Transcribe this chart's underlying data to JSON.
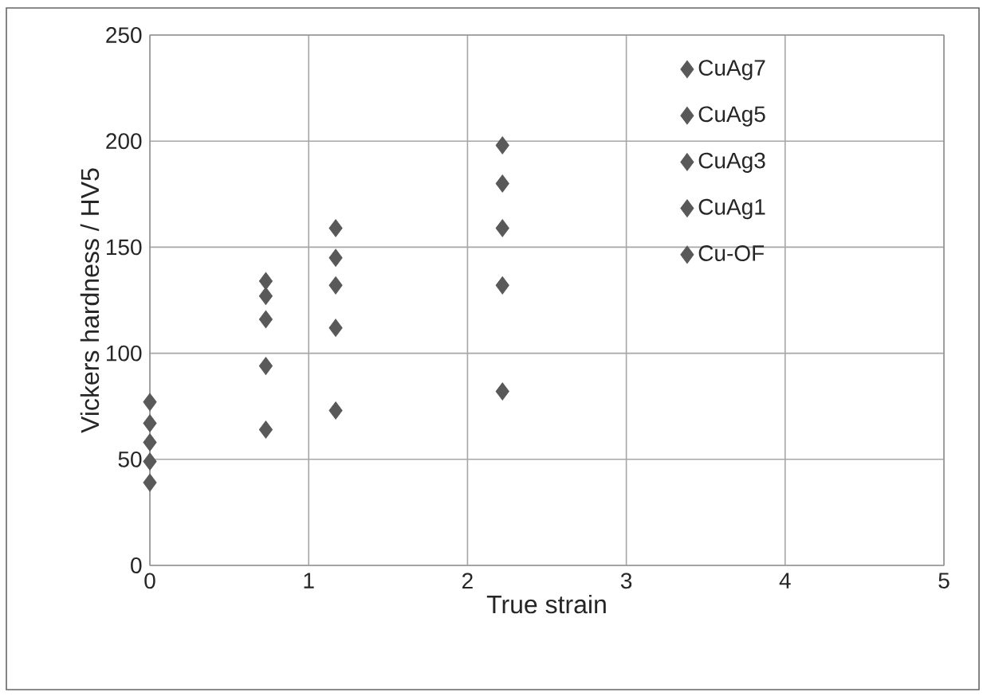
{
  "chart_data": {
    "type": "scatter",
    "xlabel": "True strain",
    "ylabel": "Vickers hardness / HV5",
    "x": [
      0,
      0.73,
      1.17,
      2.22
    ],
    "series": [
      {
        "name": "CuAg7",
        "color": "#595959",
        "values": [
          77,
          134,
          159,
          198
        ]
      },
      {
        "name": "CuAg5",
        "color": "#595959",
        "values": [
          67,
          127,
          145,
          180
        ]
      },
      {
        "name": "CuAg3",
        "color": "#595959",
        "values": [
          58,
          116,
          132,
          159
        ]
      },
      {
        "name": "CuAg1",
        "color": "#595959",
        "values": [
          49,
          94,
          112,
          132
        ]
      },
      {
        "name": "Cu-OF",
        "color": "#595959",
        "values": [
          39,
          64,
          73,
          82
        ]
      }
    ],
    "marker": "diamond",
    "xlim": [
      0,
      5
    ],
    "ylim": [
      0,
      250
    ],
    "xticks": [
      0,
      1,
      2,
      3,
      4,
      5
    ],
    "yticks": [
      0,
      50,
      100,
      150,
      200,
      250
    ],
    "grid": true,
    "legend": "top right"
  }
}
